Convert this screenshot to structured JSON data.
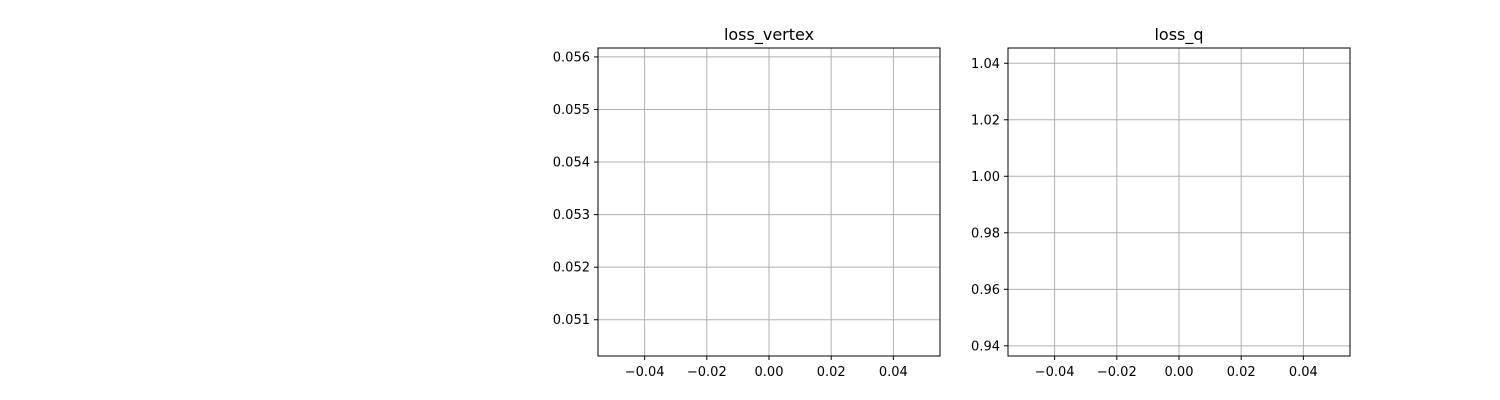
{
  "chart_data": [
    {
      "type": "line",
      "title": "loss_vertex",
      "xlabel": "",
      "ylabel": "",
      "grid": true,
      "xlim": [
        -0.055,
        0.055
      ],
      "ylim": [
        0.05031,
        0.05617
      ],
      "xticks": [
        -0.04,
        -0.02,
        0.0,
        0.02,
        0.04
      ],
      "xtick_labels": [
        "−0.04",
        "−0.02",
        "0.00",
        "0.02",
        "0.04"
      ],
      "yticks": [
        0.051,
        0.052,
        0.053,
        0.054,
        0.055,
        0.056
      ],
      "ytick_labels": [
        "0.051",
        "0.052",
        "0.053",
        "0.054",
        "0.055",
        "0.056"
      ],
      "series": []
    },
    {
      "type": "line",
      "title": "loss_q",
      "xlabel": "",
      "ylabel": "",
      "grid": true,
      "xlim": [
        -0.055,
        0.055
      ],
      "ylim": [
        0.9364,
        1.0454
      ],
      "xticks": [
        -0.04,
        -0.02,
        0.0,
        0.02,
        0.04
      ],
      "xtick_labels": [
        "−0.04",
        "−0.02",
        "0.00",
        "0.02",
        "0.04"
      ],
      "yticks": [
        0.94,
        0.96,
        0.98,
        1.0,
        1.02,
        1.04
      ],
      "ytick_labels": [
        "0.94",
        "0.96",
        "0.98",
        "1.00",
        "1.02",
        "1.04"
      ],
      "series": []
    }
  ]
}
